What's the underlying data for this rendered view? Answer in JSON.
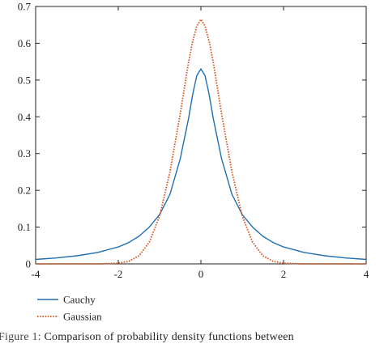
{
  "chart_data": {
    "type": "line",
    "title": "",
    "xlabel": "",
    "ylabel": "",
    "xlim": [
      -4,
      4
    ],
    "ylim": [
      0,
      0.7
    ],
    "xticks": [
      "-4",
      "-2",
      "0",
      "2",
      "4"
    ],
    "yticks": [
      "0",
      "0.1",
      "0.2",
      "0.3",
      "0.4",
      "0.5",
      "0.6",
      "0.7"
    ],
    "grid": false,
    "legend_position": "bottom-left",
    "series": [
      {
        "name": "Cauchy",
        "color": "#1f6fb2",
        "style": "solid",
        "x": [
          -4,
          -3.5,
          -3,
          -2.5,
          -2,
          -1.75,
          -1.5,
          -1.25,
          -1,
          -0.75,
          -0.5,
          -0.3,
          -0.2,
          -0.1,
          0,
          0.1,
          0.2,
          0.3,
          0.5,
          0.75,
          1,
          1.25,
          1.5,
          1.75,
          2,
          2.5,
          3,
          3.5,
          4
        ],
        "y": [
          0.012,
          0.016,
          0.022,
          0.031,
          0.046,
          0.058,
          0.075,
          0.1,
          0.134,
          0.189,
          0.286,
          0.395,
          0.46,
          0.512,
          0.53,
          0.512,
          0.46,
          0.395,
          0.286,
          0.189,
          0.134,
          0.1,
          0.075,
          0.058,
          0.046,
          0.031,
          0.022,
          0.016,
          0.012
        ]
      },
      {
        "name": "Gaussian",
        "color": "#d9541e",
        "style": "dotted",
        "x": [
          -4,
          -3.5,
          -3,
          -2.5,
          -2,
          -1.75,
          -1.5,
          -1.25,
          -1,
          -0.75,
          -0.5,
          -0.3,
          -0.2,
          -0.1,
          0,
          0.1,
          0.2,
          0.3,
          0.5,
          0.75,
          1,
          1.25,
          1.5,
          1.75,
          2,
          2.5,
          3,
          3.5,
          4
        ],
        "y": [
          0,
          0,
          0,
          0.0001,
          0.0017,
          0.0067,
          0.022,
          0.059,
          0.13,
          0.25,
          0.408,
          0.548,
          0.605,
          0.647,
          0.665,
          0.647,
          0.605,
          0.548,
          0.408,
          0.25,
          0.13,
          0.059,
          0.022,
          0.0067,
          0.0017,
          0.0001,
          0,
          0,
          0
        ]
      }
    ]
  },
  "caption": {
    "lead": "Figure 1:",
    "text": "Comparison of probability density functions between"
  }
}
